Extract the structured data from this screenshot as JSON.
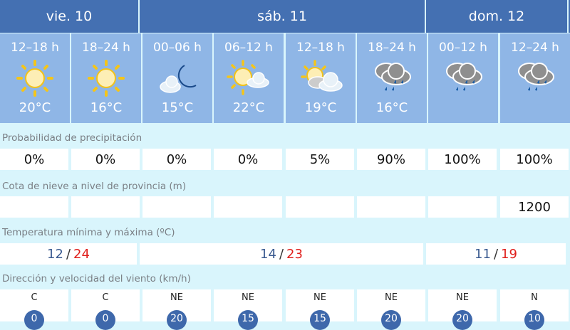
{
  "days": [
    {
      "label": "vie. 10"
    },
    {
      "label": "sáb. 11"
    },
    {
      "label": "dom. 12"
    }
  ],
  "periods": [
    {
      "hours": "12–18 h",
      "icon": "sun-icon",
      "temp": "20°C"
    },
    {
      "hours": "18–24 h",
      "icon": "sun-icon",
      "temp": "16°C"
    },
    {
      "hours": "00–06 h",
      "icon": "moon-cloud-icon",
      "temp": "15°C"
    },
    {
      "hours": "06–12 h",
      "icon": "sun-cloud-icon",
      "temp": "22°C"
    },
    {
      "hours": "12–18 h",
      "icon": "sun-cloudy-icon",
      "temp": "19°C"
    },
    {
      "hours": "18–24 h",
      "icon": "rain-icon",
      "temp": "16°C"
    },
    {
      "hours": "00–12 h",
      "icon": "rain-icon",
      "temp": ""
    },
    {
      "hours": "12–24 h",
      "icon": "rain-icon",
      "temp": ""
    }
  ],
  "precip": {
    "label": "Probabilidad de precipitación",
    "values": [
      "0%",
      "0%",
      "0%",
      "0%",
      "5%",
      "90%",
      "100%",
      "100%"
    ]
  },
  "snow": {
    "label": "Cota de nieve a nivel de provincia (m)",
    "values": [
      "",
      "",
      "",
      "",
      "",
      "",
      "",
      "1200"
    ]
  },
  "temps": {
    "label": "Temperatura mínima y máxima (ºC)",
    "sep": "/",
    "values": [
      {
        "min": "12",
        "max": "24"
      },
      {
        "min": "14",
        "max": "23"
      },
      {
        "min": "11",
        "max": "19"
      }
    ]
  },
  "wind": {
    "label": "Dirección y velocidad del viento (km/h)",
    "values": [
      {
        "dir": "C",
        "speed": "0"
      },
      {
        "dir": "C",
        "speed": "0"
      },
      {
        "dir": "NE",
        "speed": "20"
      },
      {
        "dir": "NE",
        "speed": "15"
      },
      {
        "dir": "NE",
        "speed": "15"
      },
      {
        "dir": "NE",
        "speed": "20"
      },
      {
        "dir": "NE",
        "speed": "20"
      },
      {
        "dir": "N",
        "speed": "10"
      }
    ]
  },
  "colors": {
    "header": "#4470b2",
    "period": "#8fb6e6",
    "background": "#d9f5fc",
    "min": "#3a5a90",
    "max": "#e0201c"
  }
}
